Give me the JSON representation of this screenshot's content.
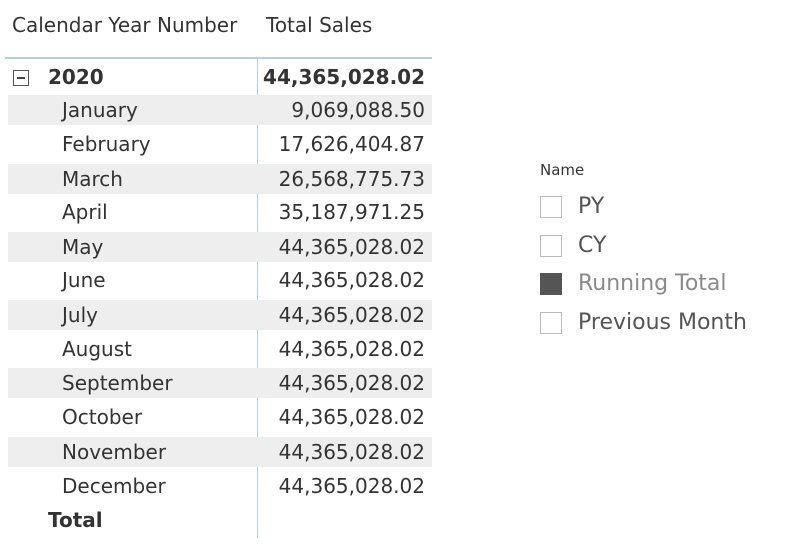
{
  "matrix": {
    "headers": [
      "Calendar Year Number",
      "Total Sales"
    ],
    "group": {
      "label": "2020",
      "value": "44,365,028.02"
    },
    "rows": [
      [
        "January",
        "9,069,088.50"
      ],
      [
        "February",
        "17,626,404.87"
      ],
      [
        "March",
        "26,568,775.73"
      ],
      [
        "April",
        "35,187,971.25"
      ],
      [
        "May",
        "44,365,028.02"
      ],
      [
        "June",
        "44,365,028.02"
      ],
      [
        "July",
        "44,365,028.02"
      ],
      [
        "August",
        "44,365,028.02"
      ],
      [
        "September",
        "44,365,028.02"
      ],
      [
        "October",
        "44,365,028.02"
      ],
      [
        "November",
        "44,365,028.02"
      ],
      [
        "December",
        "44,365,028.02"
      ]
    ],
    "total": "Total"
  },
  "slicer": {
    "title": "Name",
    "items": [
      {
        "label": "PY",
        "checked": false
      },
      {
        "label": "CY",
        "checked": false
      },
      {
        "label": "Running Total",
        "checked": true
      },
      {
        "label": "Previous Month",
        "checked": false
      }
    ]
  }
}
